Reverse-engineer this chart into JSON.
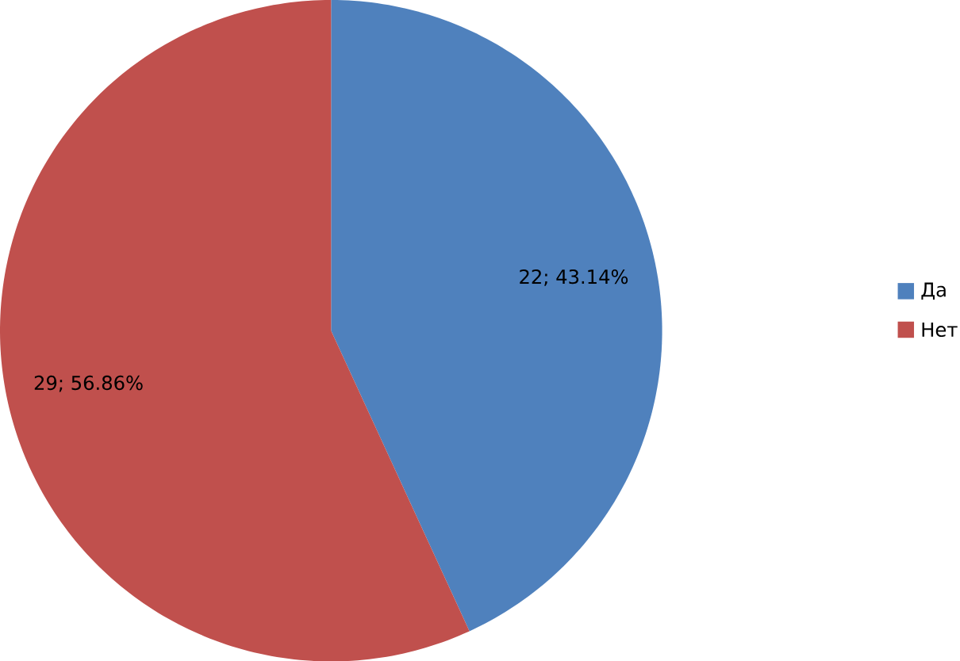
{
  "chart_data": {
    "type": "pie",
    "categories": [
      "Да",
      "Нет"
    ],
    "values": [
      22,
      29
    ],
    "colors": [
      "#4f81bd",
      "#c0504d"
    ],
    "value_labels": [
      "22; 43.14%",
      "29; 56.86%"
    ],
    "legend": "right"
  }
}
